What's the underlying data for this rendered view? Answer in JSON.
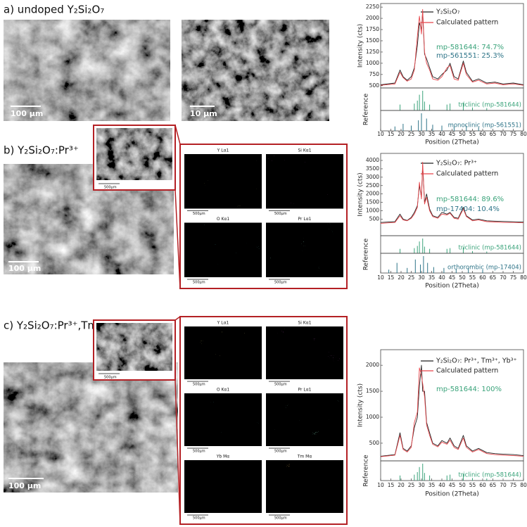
{
  "panels": [
    {
      "label": "a)  undoped Y₂Si₂O₇",
      "images": [
        {
          "scale": "100 μm"
        },
        {
          "scale": "10 μm"
        }
      ]
    },
    {
      "label": "b)  Y₂Si₂O₇:Pr³⁺",
      "inset_scale": "500μm",
      "images": [
        {
          "scale": "100 μm"
        }
      ],
      "maps": [
        {
          "title": "Y Lα1",
          "scale": "500μm",
          "color": "#d6cc3a"
        },
        {
          "title": "Si Kα1",
          "scale": "500μm",
          "color": "#b324c8"
        },
        {
          "title": "O Kα1",
          "scale": "500μm",
          "color": "#28b8b8"
        },
        {
          "title": "Pr Lα1",
          "scale": "500μm",
          "color": "#2c6a50"
        }
      ]
    },
    {
      "label": "c)  Y₂Si₂O₇:Pr³⁺,Tm³⁺,Yb³⁺",
      "inset_scale": "500μm",
      "images": [
        {
          "scale": "100 μm"
        }
      ],
      "maps": [
        {
          "title": "Y Lα1",
          "scale": "500μm",
          "color": "#d6cc3a"
        },
        {
          "title": "Si Kα1",
          "scale": "500μm",
          "color": "#b324c8"
        },
        {
          "title": "O Kα1",
          "scale": "500μm",
          "color": "#28b8b8"
        },
        {
          "title": "Pr Lα1",
          "scale": "500μm",
          "color": "#2c6a50"
        },
        {
          "title": "Yb Mα",
          "scale": "500μm",
          "color": "#d0203a"
        },
        {
          "title": "Tm Mα",
          "scale": "500μm",
          "color": "#d07a20"
        }
      ]
    }
  ],
  "chart_data": [
    {
      "type": "line",
      "x_label": "Position (2Theta)",
      "y_label": "Intensity (cts)",
      "ref_label": "Reference",
      "xlim": [
        10,
        80
      ],
      "xticks": [
        10,
        15,
        20,
        25,
        30,
        35,
        40,
        45,
        50,
        55,
        60,
        65,
        70,
        75,
        80
      ],
      "ylim": [
        450,
        2330
      ],
      "yticks": [
        500,
        750,
        1000,
        1250,
        1500,
        1750,
        2000,
        2250
      ],
      "x": [
        10,
        17,
        19.5,
        21,
        23,
        25,
        26.5,
        28,
        29,
        30,
        30.6,
        31.5,
        32.5,
        34,
        35.5,
        38,
        40,
        42.5,
        44,
        46,
        48,
        50.5,
        52,
        55,
        58,
        62,
        66,
        70,
        75,
        80
      ],
      "series": [
        {
          "name": "Y₂Si₂O₇",
          "color": "#222222",
          "values": [
            520,
            560,
            850,
            700,
            620,
            700,
            900,
            1400,
            1900,
            1750,
            2150,
            1200,
            1100,
            900,
            700,
            650,
            750,
            850,
            1000,
            700,
            650,
            1050,
            800,
            600,
            650,
            560,
            580,
            540,
            560,
            520
          ]
        },
        {
          "name": "Calculated pattern",
          "color": "#e8454a",
          "values": [
            510,
            540,
            800,
            680,
            600,
            650,
            850,
            1600,
            2050,
            1650,
            2200,
            1250,
            1000,
            850,
            650,
            620,
            700,
            900,
            950,
            650,
            620,
            1000,
            750,
            580,
            620,
            540,
            560,
            520,
            540,
            510
          ]
        }
      ],
      "annotations": [
        {
          "text": "mp-581644: 74.7%",
          "color": "#3aa37a"
        },
        {
          "text": "mp-561551: 25.3%",
          "color": "#2e7488"
        }
      ],
      "references": [
        {
          "name": "triclinic (mp-581644)",
          "color": "#3aa37a",
          "x": [
            19.5,
            26.5,
            28,
            29,
            30.6,
            31.5,
            34,
            42.5,
            44,
            50.5,
            55,
            62
          ],
          "values": [
            0.3,
            0.35,
            0.5,
            0.8,
            1,
            0.45,
            0.3,
            0.3,
            0.35,
            0.4,
            0.15,
            0.12
          ]
        },
        {
          "name": "monoclinic (mp-561551)",
          "color": "#2e7488",
          "x": [
            17,
            21,
            25,
            28.5,
            30,
            32.5,
            35.5,
            40,
            46,
            52,
            58
          ],
          "values": [
            0.25,
            0.4,
            0.3,
            0.6,
            1,
            0.7,
            0.35,
            0.3,
            0.25,
            0.3,
            0.2
          ]
        }
      ]
    },
    {
      "type": "line",
      "x_label": "Position (2Theta)",
      "y_label": "Intensity (cts)",
      "ref_label": "Reference",
      "xlim": [
        10,
        80
      ],
      "xticks": [
        10,
        15,
        20,
        25,
        30,
        35,
        40,
        45,
        50,
        55,
        60,
        65,
        70,
        75,
        80
      ],
      "ylim": [
        -490,
        4420
      ],
      "yticks": [
        500,
        1000,
        1500,
        2000,
        2500,
        3000,
        3500,
        4000
      ],
      "x": [
        10,
        17,
        19.5,
        21,
        23,
        25,
        26.5,
        28,
        29,
        30,
        30.6,
        31.5,
        32.5,
        34,
        35.5,
        38,
        40,
        42.5,
        44,
        46,
        48,
        50.5,
        52,
        55,
        58,
        62,
        66,
        70,
        75,
        80
      ],
      "series": [
        {
          "name": "Y₂Si₂O₇: Pr³⁺",
          "color": "#222222",
          "values": [
            300,
            350,
            800,
            500,
            420,
            600,
            900,
            1300,
            2500,
            1800,
            3700,
            1500,
            2000,
            1100,
            700,
            600,
            900,
            800,
            900,
            600,
            550,
            1200,
            700,
            450,
            500,
            400,
            380,
            360,
            340,
            320
          ]
        },
        {
          "name": "Calculated pattern",
          "color": "#e8454a",
          "values": [
            250,
            300,
            700,
            450,
            400,
            550,
            800,
            1200,
            2700,
            1700,
            3900,
            1400,
            1800,
            1000,
            650,
            550,
            800,
            750,
            850,
            550,
            500,
            1100,
            650,
            400,
            450,
            350,
            330,
            300,
            300,
            280
          ]
        }
      ],
      "annotations": [
        {
          "text": "mp-581644: 89.6%",
          "color": "#3aa37a"
        },
        {
          "text": "mp-17404: 10.4%",
          "color": "#2e7488"
        }
      ],
      "references": [
        {
          "name": "triclinic (mp-581644)",
          "color": "#3aa37a",
          "x": [
            19.5,
            26.5,
            28,
            29,
            30.6,
            31.5,
            34,
            42.5,
            44,
            50.5,
            55,
            62
          ],
          "values": [
            0.3,
            0.35,
            0.5,
            0.8,
            1,
            0.45,
            0.3,
            0.3,
            0.35,
            0.4,
            0.15,
            0.12
          ]
        },
        {
          "name": "orthorombic (mp-17404)",
          "color": "#2e7488",
          "x": [
            14,
            18,
            23,
            27,
            29.5,
            31,
            33,
            36,
            41,
            47,
            53,
            60
          ],
          "values": [
            0.2,
            0.6,
            0.3,
            0.8,
            0.5,
            1,
            0.6,
            0.35,
            0.3,
            0.25,
            0.3,
            0.2
          ]
        }
      ]
    },
    {
      "type": "line",
      "x_label": "Position (2Theta)",
      "y_label": "Intensity (cts)",
      "ref_label": "Reference",
      "xlim": [
        10,
        80
      ],
      "xticks": [
        10,
        15,
        20,
        25,
        30,
        35,
        40,
        45,
        50,
        55,
        60,
        65,
        70,
        75,
        80
      ],
      "ylim": [
        160,
        2300
      ],
      "yticks": [
        500,
        1000,
        1500,
        2000
      ],
      "x": [
        10,
        17,
        19.5,
        21,
        23,
        25,
        26.5,
        28,
        29,
        30,
        30.6,
        31.5,
        32.5,
        34,
        35.5,
        38,
        40,
        42.5,
        44,
        46,
        48,
        50.5,
        52,
        55,
        58,
        62,
        66,
        70,
        75,
        80
      ],
      "series": [
        {
          "name": "Y₂Si₂O₇: Pr³⁺, Tm³⁺, Yb³⁺",
          "color": "#222222",
          "values": [
            250,
            280,
            700,
            400,
            350,
            450,
            800,
            1000,
            1600,
            2000,
            1500,
            1500,
            900,
            700,
            500,
            450,
            550,
            500,
            600,
            450,
            400,
            650,
            450,
            350,
            400,
            320,
            300,
            290,
            280,
            260
          ]
        },
        {
          "name": "Calculated pattern",
          "color": "#e8454a",
          "values": [
            240,
            270,
            650,
            380,
            330,
            420,
            900,
            1100,
            1950,
            1800,
            1650,
            1400,
            850,
            650,
            480,
            430,
            520,
            480,
            560,
            420,
            380,
            600,
            420,
            330,
            380,
            300,
            280,
            270,
            260,
            250
          ]
        }
      ],
      "annotations": [
        {
          "text": "mp-581644: 100%",
          "color": "#3aa37a"
        }
      ],
      "references": [
        {
          "name": "triclinic (mp-581644)",
          "color": "#3aa37a",
          "x": [
            19.5,
            26.5,
            28,
            29,
            30.6,
            31.5,
            34,
            42.5,
            44,
            50.5,
            55,
            62
          ],
          "values": [
            0.3,
            0.35,
            0.5,
            0.8,
            1,
            0.45,
            0.3,
            0.3,
            0.35,
            0.4,
            0.15,
            0.12
          ]
        }
      ]
    }
  ]
}
